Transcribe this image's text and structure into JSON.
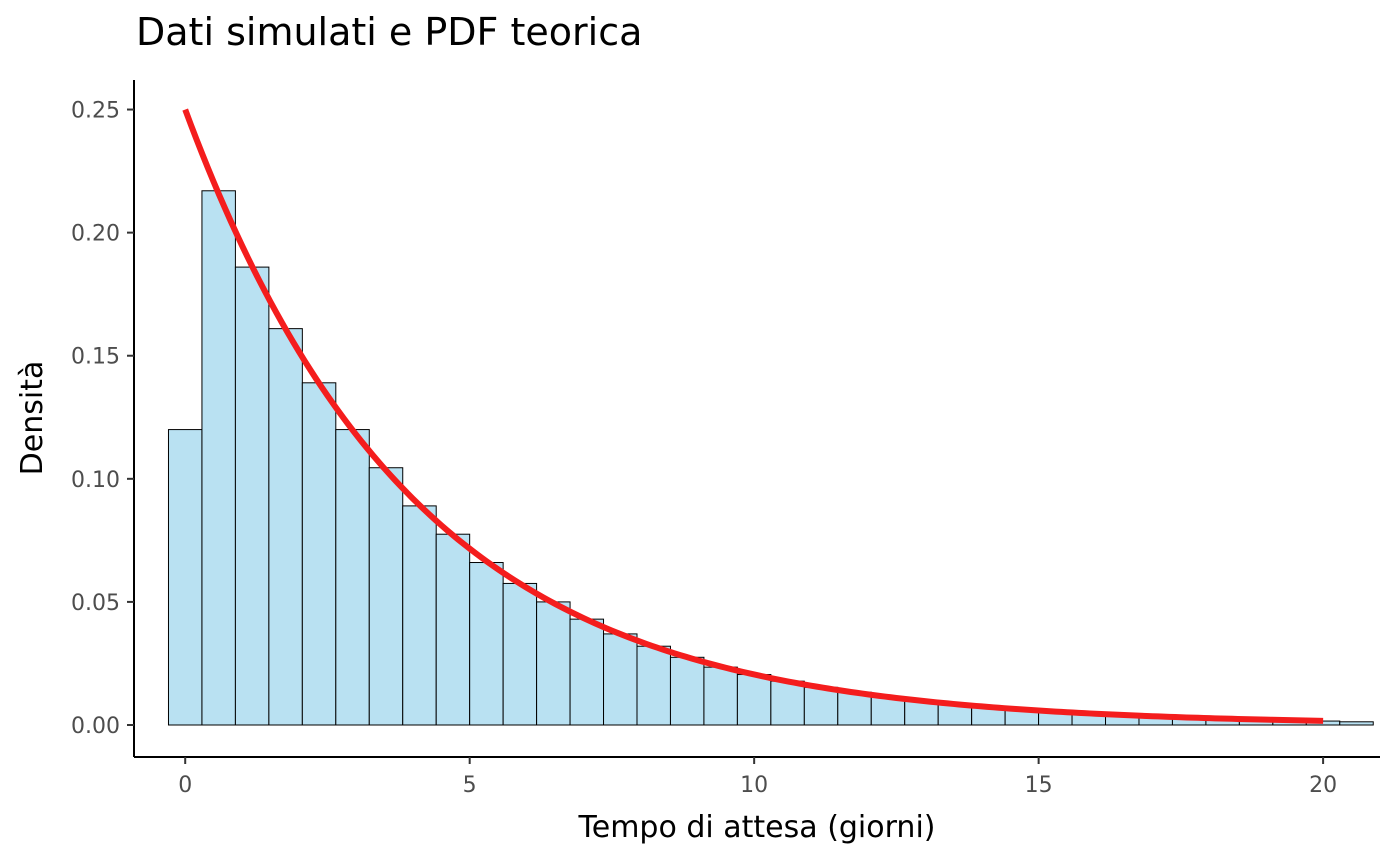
{
  "chart_data": {
    "type": "bar",
    "title": "Dati simulati e PDF teorica",
    "xlabel": "Tempo di attesa (giorni)",
    "ylabel": "Densità",
    "xlim": [
      -0.9,
      21.0
    ],
    "ylim": [
      -0.013,
      0.262
    ],
    "x_ticks": [
      "0",
      "5",
      "10",
      "15",
      "20"
    ],
    "y_ticks": [
      "0.00",
      "0.05",
      "0.10",
      "0.15",
      "0.20",
      "0.25"
    ],
    "grid": false,
    "histogram": {
      "bin_width": 0.5882,
      "first_bin_start": -0.294,
      "fill": "#b9e1f2",
      "edge": "#000000",
      "densities": [
        0.12,
        0.217,
        0.186,
        0.161,
        0.139,
        0.12,
        0.1045,
        0.089,
        0.0775,
        0.066,
        0.0575,
        0.05,
        0.043,
        0.037,
        0.032,
        0.0275,
        0.0235,
        0.0205,
        0.0178,
        0.0153,
        0.0133,
        0.0115,
        0.0098,
        0.0085,
        0.0073,
        0.0063,
        0.0055,
        0.0047,
        0.004,
        0.0035,
        0.003,
        0.0026,
        0.0022,
        0.0019,
        0.0016,
        0.0013
      ]
    },
    "pdf_curve": {
      "name": "PDF teorica",
      "distribution": "exponential",
      "rate": 0.25,
      "x_range": [
        0,
        20
      ],
      "color": "#f41d1d"
    }
  }
}
